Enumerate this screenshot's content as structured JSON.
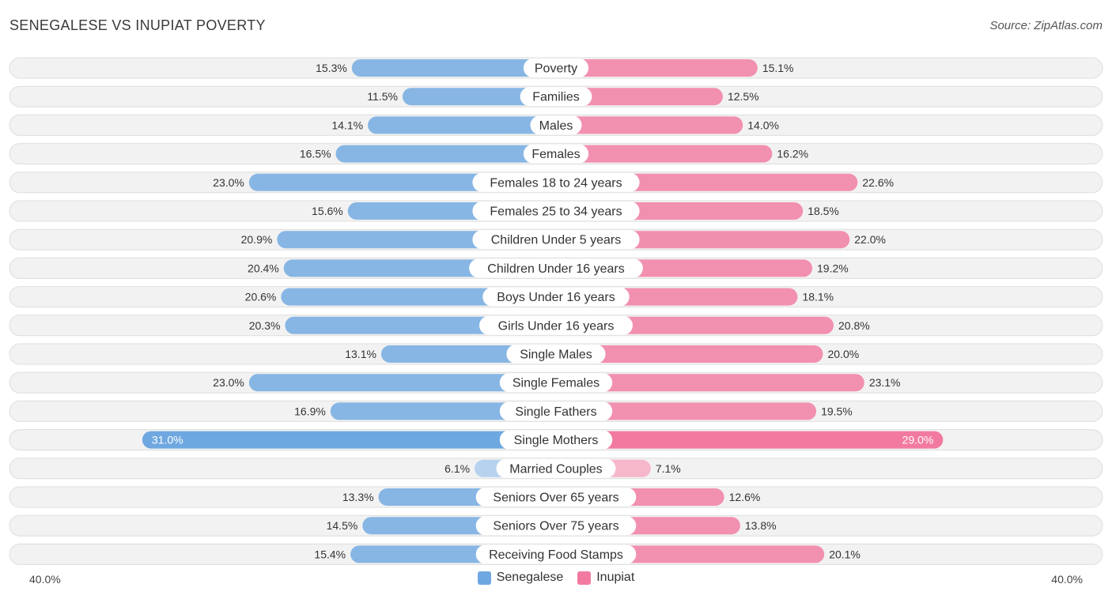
{
  "title": "SENEGALESE VS INUPIAT POVERTY",
  "source": "Source: ZipAtlas.com",
  "colors": {
    "left": "#6fa8e0",
    "left_light": "#a9cbee",
    "right": "#f27aa0",
    "right_light": "#f6a9c2",
    "track": "#f2f2f2",
    "track_border": "#dedede"
  },
  "chart_data": {
    "type": "bar",
    "orientation": "diverging-horizontal",
    "title": "SENEGALESE VS INUPIAT POVERTY",
    "axis_min_label": "40.0%",
    "axis_max_label": "40.0%",
    "xlim": [
      -40,
      40
    ],
    "categories": [
      "Poverty",
      "Families",
      "Males",
      "Females",
      "Females 18 to 24 years",
      "Females 25 to 34 years",
      "Children Under 5 years",
      "Children Under 16 years",
      "Boys Under 16 years",
      "Girls Under 16 years",
      "Single Males",
      "Single Females",
      "Single Fathers",
      "Single Mothers",
      "Married Couples",
      "Seniors Over 65 years",
      "Seniors Over 75 years",
      "Receiving Food Stamps"
    ],
    "series": [
      {
        "name": "Senegalese",
        "values": [
          15.3,
          11.5,
          14.1,
          16.5,
          23.0,
          15.6,
          20.9,
          20.4,
          20.6,
          20.3,
          13.1,
          23.0,
          16.9,
          31.0,
          6.1,
          13.3,
          14.5,
          15.4
        ],
        "labels": [
          "15.3%",
          "11.5%",
          "14.1%",
          "16.5%",
          "23.0%",
          "15.6%",
          "20.9%",
          "20.4%",
          "20.6%",
          "20.3%",
          "13.1%",
          "23.0%",
          "16.9%",
          "31.0%",
          "6.1%",
          "13.3%",
          "14.5%",
          "15.4%"
        ]
      },
      {
        "name": "Inupiat",
        "values": [
          15.1,
          12.5,
          14.0,
          16.2,
          22.6,
          18.5,
          22.0,
          19.2,
          18.1,
          20.8,
          20.0,
          23.1,
          19.5,
          29.0,
          7.1,
          12.6,
          13.8,
          20.1
        ],
        "labels": [
          "15.1%",
          "12.5%",
          "14.0%",
          "16.2%",
          "22.6%",
          "18.5%",
          "22.0%",
          "19.2%",
          "18.1%",
          "20.8%",
          "20.0%",
          "23.1%",
          "19.5%",
          "29.0%",
          "7.1%",
          "12.6%",
          "13.8%",
          "20.1%"
        ]
      }
    ],
    "legend": [
      "Senegalese",
      "Inupiat"
    ],
    "legend_position": "bottom-center"
  }
}
